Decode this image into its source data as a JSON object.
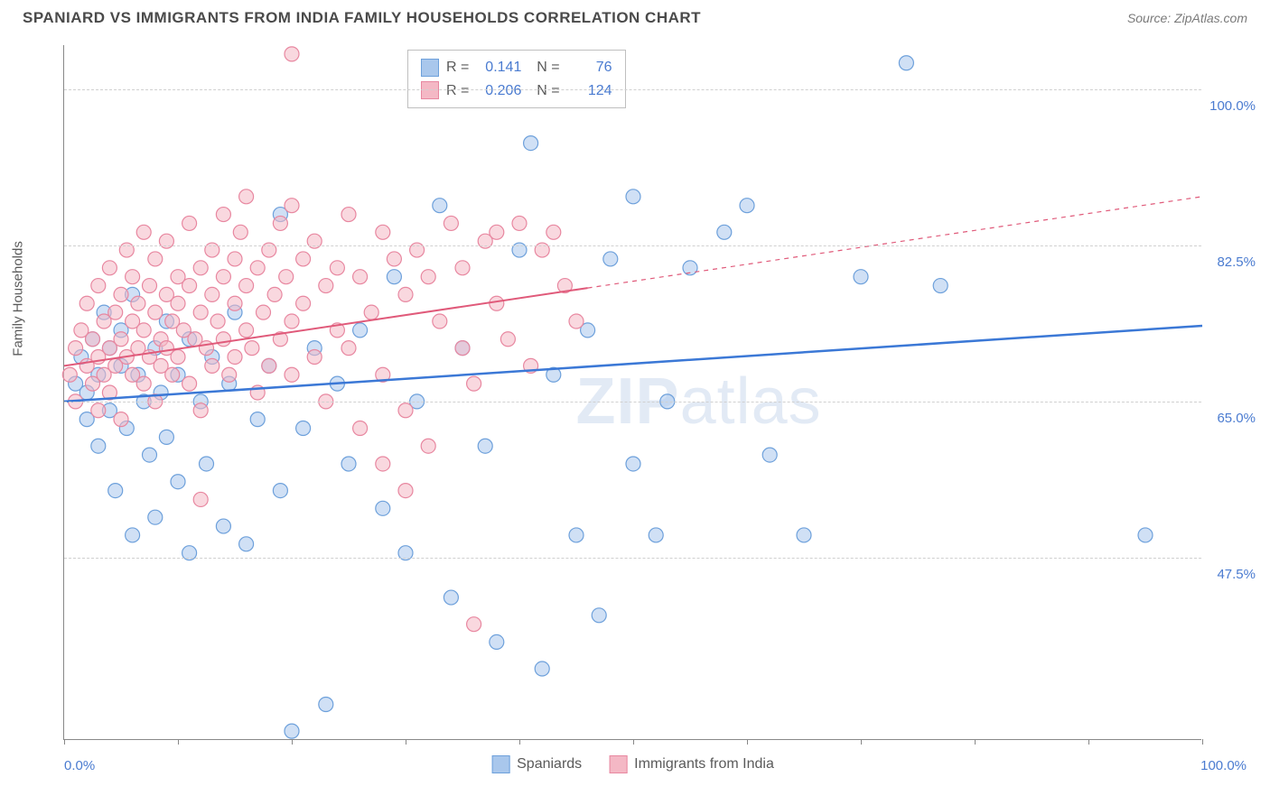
{
  "header": {
    "title": "SPANIARD VS IMMIGRANTS FROM INDIA FAMILY HOUSEHOLDS CORRELATION CHART",
    "source": "Source: ZipAtlas.com"
  },
  "chart": {
    "type": "scatter",
    "y_axis_label": "Family Households",
    "watermark": "ZIPatlas",
    "xlim": [
      0,
      100
    ],
    "ylim": [
      27,
      105
    ],
    "x_ticks": [
      0,
      10,
      20,
      30,
      40,
      50,
      60,
      70,
      80,
      90,
      100
    ],
    "x_tick_labels_shown": {
      "0": "0.0%",
      "100": "100.0%"
    },
    "y_ticks": [
      47.5,
      65.0,
      82.5,
      100.0
    ],
    "y_tick_labels": [
      "47.5%",
      "65.0%",
      "82.5%",
      "100.0%"
    ],
    "grid_color": "#d0d0d0",
    "background_color": "#ffffff",
    "axis_color": "#888888",
    "tick_label_color": "#4a7bd0",
    "marker_radius": 8,
    "marker_opacity": 0.55,
    "series": [
      {
        "name": "Spaniards",
        "color_fill": "#a9c7ec",
        "color_stroke": "#6da0db",
        "R": "0.141",
        "N": "76",
        "trend": {
          "x1": 0,
          "y1": 65,
          "x2": 100,
          "y2": 73.5,
          "color": "#3b78d6",
          "width": 2.5,
          "solid_to_x": 100
        },
        "points": [
          [
            1,
            67
          ],
          [
            1.5,
            70
          ],
          [
            2,
            66
          ],
          [
            2,
            63
          ],
          [
            2.5,
            72
          ],
          [
            3,
            68
          ],
          [
            3,
            60
          ],
          [
            3.5,
            75
          ],
          [
            4,
            71
          ],
          [
            4,
            64
          ],
          [
            4.5,
            55
          ],
          [
            5,
            69
          ],
          [
            5,
            73
          ],
          [
            5.5,
            62
          ],
          [
            6,
            77
          ],
          [
            6,
            50
          ],
          [
            6.5,
            68
          ],
          [
            7,
            65
          ],
          [
            7.5,
            59
          ],
          [
            8,
            71
          ],
          [
            8,
            52
          ],
          [
            8.5,
            66
          ],
          [
            9,
            74
          ],
          [
            9,
            61
          ],
          [
            10,
            68
          ],
          [
            10,
            56
          ],
          [
            11,
            72
          ],
          [
            11,
            48
          ],
          [
            12,
            65
          ],
          [
            12.5,
            58
          ],
          [
            13,
            70
          ],
          [
            14,
            51
          ],
          [
            14.5,
            67
          ],
          [
            15,
            75
          ],
          [
            16,
            49
          ],
          [
            17,
            63
          ],
          [
            18,
            69
          ],
          [
            19,
            86
          ],
          [
            19,
            55
          ],
          [
            20,
            28
          ],
          [
            21,
            62
          ],
          [
            22,
            71
          ],
          [
            23,
            31
          ],
          [
            24,
            67
          ],
          [
            25,
            58
          ],
          [
            26,
            73
          ],
          [
            28,
            53
          ],
          [
            29,
            79
          ],
          [
            30,
            48
          ],
          [
            31,
            65
          ],
          [
            33,
            87
          ],
          [
            34,
            43
          ],
          [
            35,
            71
          ],
          [
            37,
            60
          ],
          [
            38,
            38
          ],
          [
            40,
            82
          ],
          [
            41,
            94
          ],
          [
            42,
            35
          ],
          [
            43,
            68
          ],
          [
            45,
            50
          ],
          [
            46,
            73
          ],
          [
            47,
            41
          ],
          [
            48,
            81
          ],
          [
            50,
            88
          ],
          [
            50,
            58
          ],
          [
            52,
            50
          ],
          [
            53,
            65
          ],
          [
            55,
            80
          ],
          [
            60,
            87
          ],
          [
            62,
            59
          ],
          [
            65,
            50
          ],
          [
            70,
            79
          ],
          [
            74,
            103
          ],
          [
            77,
            78
          ],
          [
            95,
            50
          ],
          [
            58,
            84
          ]
        ]
      },
      {
        "name": "Immigrants from India",
        "color_fill": "#f4b8c5",
        "color_stroke": "#e887a0",
        "R": "0.206",
        "N": "124",
        "trend": {
          "x1": 0,
          "y1": 69,
          "x2": 100,
          "y2": 88,
          "color": "#e05a7a",
          "width": 2,
          "solid_to_x": 46
        },
        "points": [
          [
            0.5,
            68
          ],
          [
            1,
            71
          ],
          [
            1,
            65
          ],
          [
            1.5,
            73
          ],
          [
            2,
            69
          ],
          [
            2,
            76
          ],
          [
            2.5,
            67
          ],
          [
            2.5,
            72
          ],
          [
            3,
            70
          ],
          [
            3,
            78
          ],
          [
            3,
            64
          ],
          [
            3.5,
            74
          ],
          [
            3.5,
            68
          ],
          [
            4,
            71
          ],
          [
            4,
            80
          ],
          [
            4,
            66
          ],
          [
            4.5,
            75
          ],
          [
            4.5,
            69
          ],
          [
            5,
            72
          ],
          [
            5,
            77
          ],
          [
            5,
            63
          ],
          [
            5.5,
            70
          ],
          [
            5.5,
            82
          ],
          [
            6,
            74
          ],
          [
            6,
            68
          ],
          [
            6,
            79
          ],
          [
            6.5,
            71
          ],
          [
            6.5,
            76
          ],
          [
            7,
            73
          ],
          [
            7,
            67
          ],
          [
            7,
            84
          ],
          [
            7.5,
            70
          ],
          [
            7.5,
            78
          ],
          [
            8,
            75
          ],
          [
            8,
            81
          ],
          [
            8,
            65
          ],
          [
            8.5,
            72
          ],
          [
            8.5,
            69
          ],
          [
            9,
            77
          ],
          [
            9,
            83
          ],
          [
            9,
            71
          ],
          [
            9.5,
            74
          ],
          [
            9.5,
            68
          ],
          [
            10,
            79
          ],
          [
            10,
            76
          ],
          [
            10,
            70
          ],
          [
            10.5,
            73
          ],
          [
            11,
            85
          ],
          [
            11,
            67
          ],
          [
            11,
            78
          ],
          [
            11.5,
            72
          ],
          [
            12,
            80
          ],
          [
            12,
            75
          ],
          [
            12,
            64
          ],
          [
            12.5,
            71
          ],
          [
            13,
            82
          ],
          [
            13,
            77
          ],
          [
            13,
            69
          ],
          [
            13.5,
            74
          ],
          [
            14,
            86
          ],
          [
            14,
            79
          ],
          [
            14,
            72
          ],
          [
            14.5,
            68
          ],
          [
            15,
            81
          ],
          [
            15,
            76
          ],
          [
            15,
            70
          ],
          [
            15.5,
            84
          ],
          [
            16,
            73
          ],
          [
            16,
            78
          ],
          [
            16,
            88
          ],
          [
            16.5,
            71
          ],
          [
            17,
            80
          ],
          [
            17,
            66
          ],
          [
            17.5,
            75
          ],
          [
            18,
            82
          ],
          [
            18,
            69
          ],
          [
            18.5,
            77
          ],
          [
            19,
            85
          ],
          [
            19,
            72
          ],
          [
            19.5,
            79
          ],
          [
            20,
            87
          ],
          [
            20,
            68
          ],
          [
            20,
            74
          ],
          [
            20,
            104
          ],
          [
            21,
            81
          ],
          [
            21,
            76
          ],
          [
            22,
            70
          ],
          [
            22,
            83
          ],
          [
            23,
            78
          ],
          [
            23,
            65
          ],
          [
            24,
            80
          ],
          [
            24,
            73
          ],
          [
            25,
            86
          ],
          [
            25,
            71
          ],
          [
            26,
            79
          ],
          [
            26,
            62
          ],
          [
            27,
            75
          ],
          [
            28,
            84
          ],
          [
            28,
            68
          ],
          [
            29,
            81
          ],
          [
            30,
            77
          ],
          [
            30,
            64
          ],
          [
            31,
            82
          ],
          [
            32,
            60
          ],
          [
            32,
            79
          ],
          [
            33,
            74
          ],
          [
            34,
            85
          ],
          [
            35,
            71
          ],
          [
            35,
            80
          ],
          [
            36,
            67
          ],
          [
            37,
            83
          ],
          [
            38,
            76
          ],
          [
            39,
            72
          ],
          [
            40,
            85
          ],
          [
            41,
            69
          ],
          [
            42,
            82
          ],
          [
            43,
            84
          ],
          [
            44,
            78
          ],
          [
            45,
            74
          ],
          [
            38,
            84
          ],
          [
            28,
            58
          ],
          [
            30,
            55
          ],
          [
            12,
            54
          ],
          [
            36,
            40
          ]
        ]
      }
    ],
    "bottom_legend": [
      {
        "label": "Spaniards",
        "fill": "#a9c7ec",
        "stroke": "#6da0db"
      },
      {
        "label": "Immigrants from India",
        "fill": "#f4b8c5",
        "stroke": "#e887a0"
      }
    ]
  }
}
